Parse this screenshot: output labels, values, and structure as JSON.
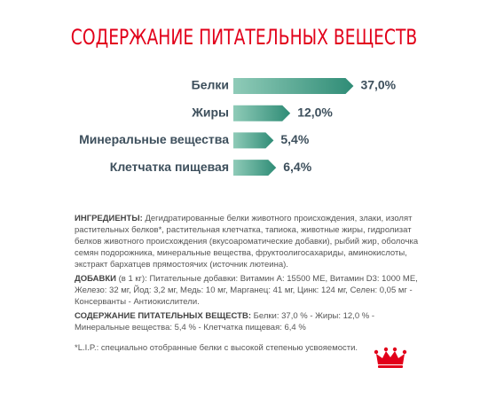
{
  "chart_data": {
    "type": "bar",
    "orientation": "horizontal",
    "title": "СОДЕРЖАНИЕ ПИТАТЕЛЬНЫХ ВЕЩЕСТВ",
    "categories": [
      "Белки",
      "Жиры",
      "Минеральные вещества",
      "Клетчатка пищевая"
    ],
    "values": [
      37.0,
      12.0,
      5.4,
      6.4
    ],
    "value_labels": [
      "37,0%",
      "12,0%",
      "5,4%",
      "6,4%"
    ],
    "color": "#2f8c76"
  },
  "document": {
    "ingredients": {
      "label": "ИНГРЕДИЕНТЫ:",
      "text": " Дегидратированные белки животного происхождения, злаки, изолят растительных белков*, растительная клетчатка, тапиока, животные жиры, гидролизат белков животного происхождения (вкусоароматические добавки), рыбий жир, оболочка семян подорожника, минеральные вещества, фруктоолигосахариды, аминокислоты, экстракт бархатцев прямостоячих (источник лютеина)."
    },
    "additives": {
      "label": "ДОБАВКИ",
      "text": " (в 1 кг): Питательные добавки: Витамин А: 15500 МЕ, Витамин D3: 1000 МЕ, Железо: 32 мг, Йод: 3,2 мг, Медь: 10 мг, Марганец: 41 мг, Цинк: 124 мг, Селен: 0,05 мг - Консерванты - Антиокислители."
    },
    "nutrients": {
      "label": "СОДЕРЖАНИЕ ПИТАТЕЛЬНЫХ ВЕЩЕСТВ:",
      "text": " Белки: 37,0 % - Жиры: 12,0 % - Минеральные вещества: 5,4 % - Клетчатка пищевая: 6,4 %"
    },
    "footnote": "*L.I.P.: специально отобранные белки с высокой степенью усвояемости."
  }
}
